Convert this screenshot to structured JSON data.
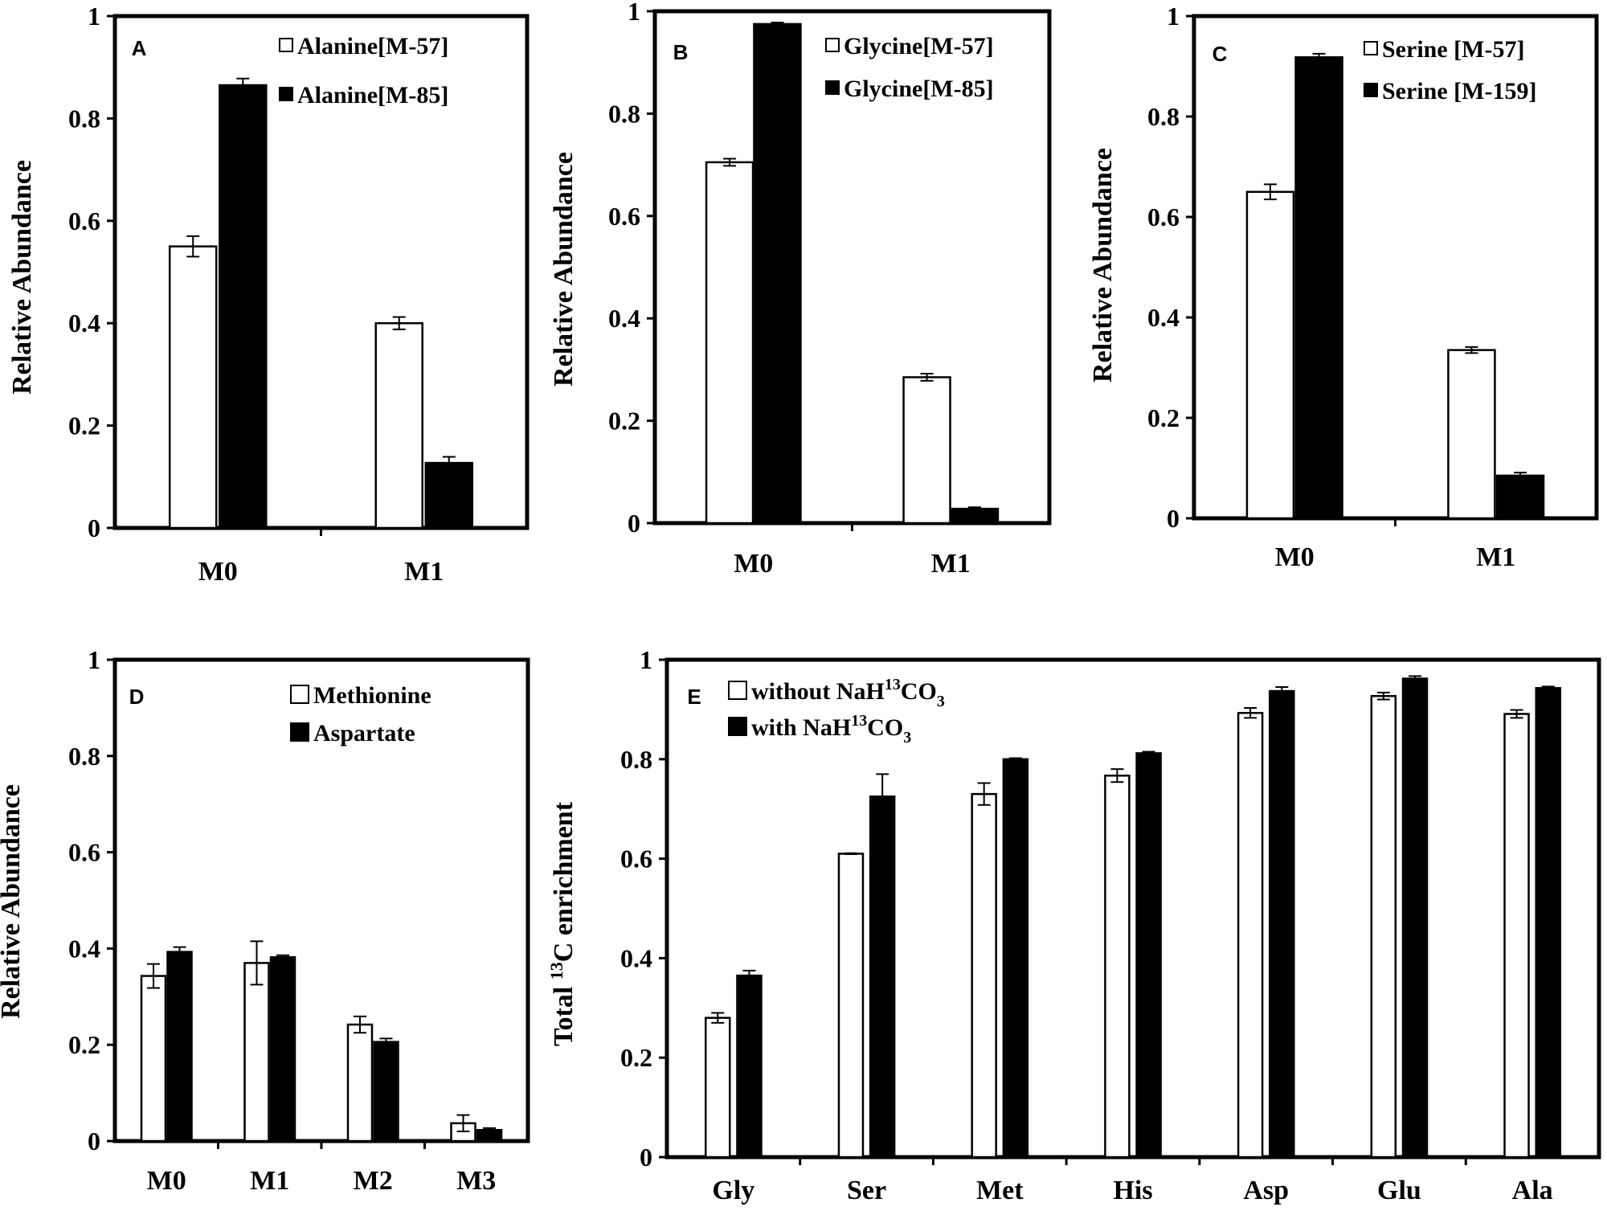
{
  "chart_data": [
    {
      "type": "bar",
      "panel": "A",
      "ylabel": "Relative Abundance",
      "ylim": [
        0,
        1
      ],
      "yticks": [
        "0",
        "0.2",
        "0.4",
        "0.6",
        "0.8",
        "1"
      ],
      "categories": [
        "M0",
        "M1"
      ],
      "series": [
        {
          "name": "Alanine[M-57]",
          "fill": "white",
          "values": [
            0.55,
            0.4
          ],
          "errors": [
            0.02,
            0.012
          ]
        },
        {
          "name": "Alanine[M-85]",
          "fill": "black",
          "values": [
            0.865,
            0.127
          ],
          "errors": [
            0.013,
            0.012
          ]
        }
      ]
    },
    {
      "type": "bar",
      "panel": "B",
      "ylabel": "Relative Abundance",
      "ylim": [
        0,
        1
      ],
      "yticks": [
        "0",
        "0.2",
        "0.4",
        "0.6",
        "0.8",
        "1"
      ],
      "categories": [
        "M0",
        "M1"
      ],
      "series": [
        {
          "name": "Glycine[M-57]",
          "fill": "white",
          "values": [
            0.705,
            0.285
          ],
          "errors": [
            0.007,
            0.007
          ]
        },
        {
          "name": "Glycine[M-85]",
          "fill": "black",
          "values": [
            0.975,
            0.028
          ],
          "errors": [
            0.003,
            0.003
          ]
        }
      ]
    },
    {
      "type": "bar",
      "panel": "C",
      "ylabel": "Relative Abundance",
      "ylim": [
        0,
        1
      ],
      "yticks": [
        "0",
        "0.2",
        "0.4",
        "0.6",
        "0.8",
        "1"
      ],
      "categories": [
        "M0",
        "M1"
      ],
      "series": [
        {
          "name": "Serine [M-57]",
          "fill": "white",
          "values": [
            0.65,
            0.335
          ],
          "errors": [
            0.015,
            0.006
          ]
        },
        {
          "name": "Serine [M-159]",
          "fill": "black",
          "values": [
            0.918,
            0.085
          ],
          "errors": [
            0.007,
            0.006
          ]
        }
      ]
    },
    {
      "type": "bar",
      "panel": "D",
      "ylabel": "Relative Abundance",
      "ylim": [
        0,
        1
      ],
      "yticks": [
        "0",
        "0.2",
        "0.4",
        "0.6",
        "0.8",
        "1"
      ],
      "categories": [
        "M0",
        "M1",
        "M2",
        "M3"
      ],
      "series": [
        {
          "name": "Methionine",
          "fill": "white",
          "values": [
            0.343,
            0.37,
            0.242,
            0.037
          ],
          "errors": [
            0.025,
            0.045,
            0.017,
            0.017
          ]
        },
        {
          "name": "Aspartate",
          "fill": "black",
          "values": [
            0.393,
            0.382,
            0.206,
            0.023
          ],
          "errors": [
            0.01,
            0.004,
            0.007,
            0.004
          ]
        }
      ]
    },
    {
      "type": "bar",
      "panel": "E",
      "ylabel_pre": "Total ",
      "ylabel_sup": "13",
      "ylabel_post": "C enrichment",
      "ylim": [
        0,
        1
      ],
      "yticks": [
        "0",
        "0.2",
        "0.4",
        "0.6",
        "0.8",
        "1"
      ],
      "categories": [
        "Gly",
        "Ser",
        "Met",
        "His",
        "Asp",
        "Glu",
        "Ala"
      ],
      "series": [
        {
          "name": "without NaH13CO3",
          "name_pre": "without NaH",
          "name_sup": "13",
          "name_mid": "CO",
          "name_sub": "3",
          "fill": "white",
          "values": [
            0.28,
            0.61,
            0.73,
            0.767,
            0.893,
            0.927,
            0.891
          ],
          "errors": [
            0.01,
            0.001,
            0.022,
            0.013,
            0.01,
            0.007,
            0.008
          ]
        },
        {
          "name": "with NaH13CO3",
          "name_pre": "with NaH",
          "name_sup": "13",
          "name_mid": "CO",
          "name_sub": "3",
          "fill": "black",
          "values": [
            0.365,
            0.725,
            0.8,
            0.812,
            0.937,
            0.962,
            0.943
          ],
          "errors": [
            0.01,
            0.045,
            0.002,
            0.003,
            0.008,
            0.005,
            0.003
          ]
        }
      ]
    }
  ]
}
